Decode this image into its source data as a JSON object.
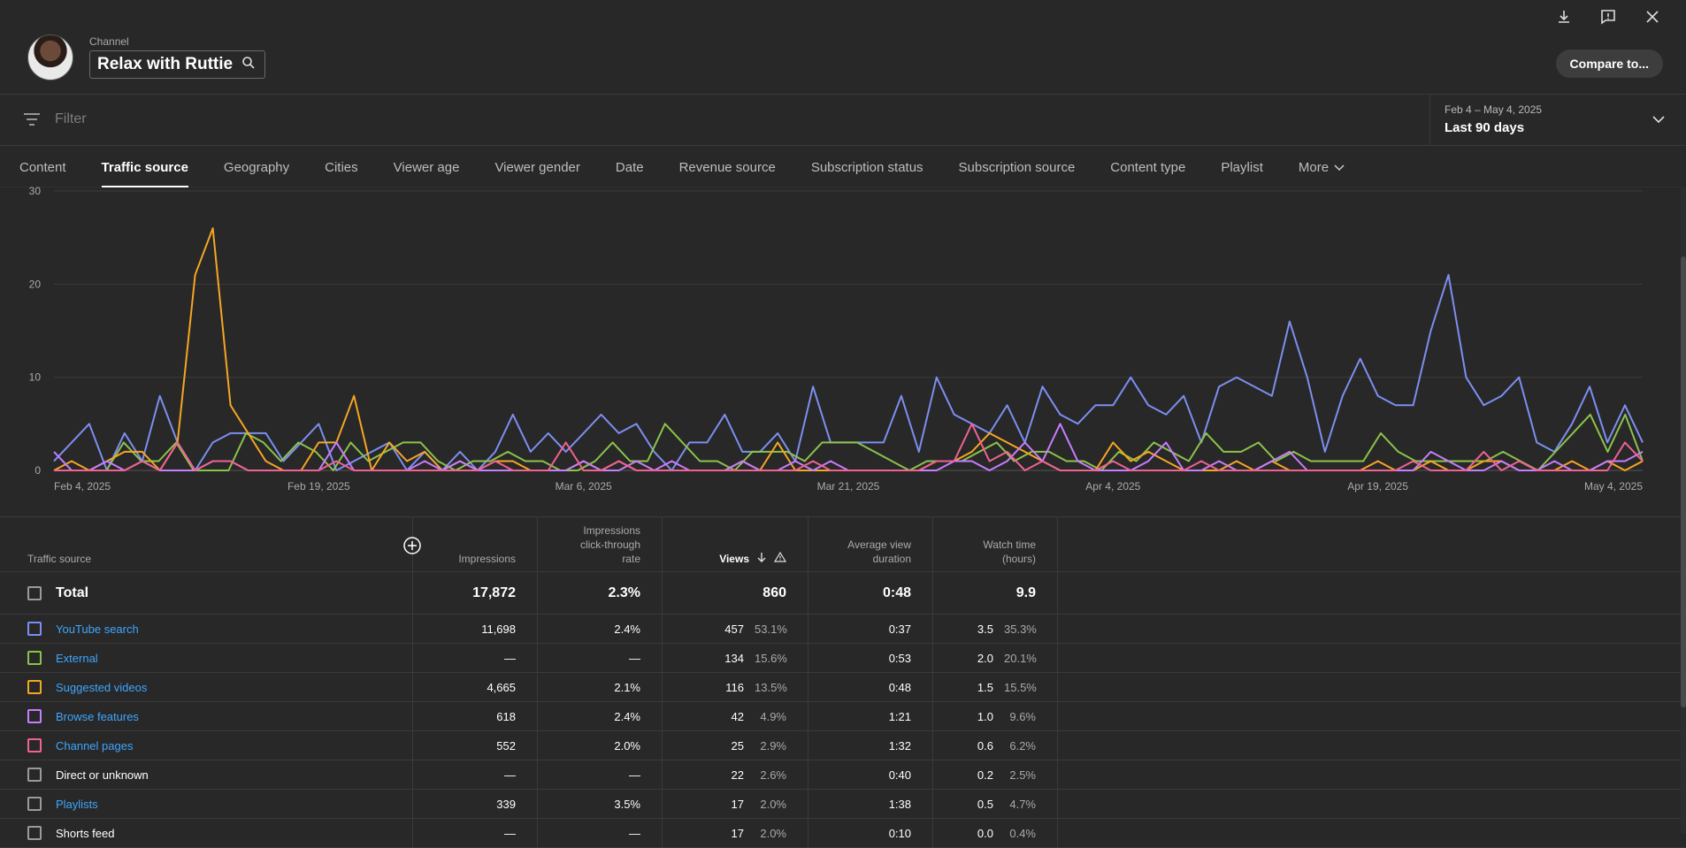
{
  "header": {
    "channel_label": "Channel",
    "channel_name": "Relax with Ruttie",
    "compare_label": "Compare to...",
    "icons": [
      "download-icon",
      "feedback-icon",
      "close-icon",
      "search-icon"
    ]
  },
  "filter": {
    "placeholder": "Filter",
    "date_range": "Feb 4 – May 4, 2025",
    "period": "Last 90 days"
  },
  "tabs": [
    {
      "label": "Content"
    },
    {
      "label": "Traffic source",
      "active": true
    },
    {
      "label": "Geography"
    },
    {
      "label": "Cities"
    },
    {
      "label": "Viewer age"
    },
    {
      "label": "Viewer gender"
    },
    {
      "label": "Date"
    },
    {
      "label": "Revenue source"
    },
    {
      "label": "Subscription status"
    },
    {
      "label": "Subscription source"
    },
    {
      "label": "Content type"
    },
    {
      "label": "Playlist"
    },
    {
      "label": "More"
    }
  ],
  "chart_data": {
    "type": "line",
    "ylim": [
      0,
      30
    ],
    "yticks": [
      0,
      10,
      20,
      30
    ],
    "xticks": [
      "Feb 4, 2025",
      "Feb 19, 2025",
      "Mar 6, 2025",
      "Mar 21, 2025",
      "Apr 4, 2025",
      "Apr 19, 2025",
      "May 4, 2025"
    ],
    "grid": true,
    "series": [
      {
        "name": "YouTube search",
        "color": "#7c8ff0",
        "values": [
          1,
          3,
          5,
          0,
          4,
          1,
          8,
          3,
          0,
          3,
          4,
          4,
          4,
          1,
          3,
          5,
          0,
          1,
          2,
          3,
          0,
          2,
          0,
          2,
          0,
          2,
          6,
          2,
          4,
          2,
          4,
          6,
          4,
          5,
          2,
          0,
          3,
          3,
          6,
          2,
          2,
          4,
          1,
          9,
          3,
          3,
          3,
          3,
          8,
          2,
          10,
          6,
          5,
          4,
          7,
          3,
          9,
          6,
          5,
          7,
          7,
          10,
          7,
          6,
          8,
          3,
          9,
          10,
          9,
          8,
          16,
          10,
          2,
          8,
          12,
          8,
          7,
          7,
          15,
          21,
          10,
          7,
          8,
          10,
          3,
          2,
          5,
          9,
          3,
          7,
          3
        ]
      },
      {
        "name": "External",
        "color": "#8bc34a",
        "values": [
          0,
          0,
          0,
          0,
          3,
          1,
          1,
          3,
          0,
          0,
          0,
          4,
          3,
          1,
          3,
          2,
          0,
          3,
          1,
          2,
          3,
          3,
          1,
          0,
          1,
          1,
          2,
          1,
          1,
          0,
          0,
          1,
          3,
          1,
          1,
          5,
          3,
          1,
          1,
          0,
          2,
          2,
          2,
          1,
          3,
          3,
          3,
          2,
          1,
          0,
          1,
          1,
          1,
          2,
          3,
          1,
          2,
          2,
          1,
          1,
          0,
          2,
          1,
          3,
          2,
          1,
          4,
          2,
          2,
          3,
          1,
          2,
          1,
          1,
          1,
          1,
          4,
          2,
          1,
          1,
          1,
          1,
          1,
          2,
          1,
          0,
          2,
          4,
          6,
          2,
          6,
          1
        ]
      },
      {
        "name": "Suggested videos",
        "color": "#f5a623",
        "values": [
          0,
          1,
          0,
          1,
          2,
          2,
          0,
          3,
          21,
          26,
          7,
          4,
          1,
          0,
          0,
          3,
          3,
          8,
          0,
          3,
          1,
          2,
          0,
          1,
          0,
          1,
          1,
          0,
          0,
          0,
          1,
          0,
          1,
          0,
          0,
          0,
          0,
          0,
          0,
          1,
          0,
          3,
          0,
          0,
          0,
          0,
          0,
          0,
          0,
          0,
          1,
          1,
          2,
          4,
          3,
          2,
          1,
          0,
          0,
          0,
          3,
          1,
          2,
          1,
          0,
          0,
          0,
          1,
          0,
          1,
          0,
          0,
          0,
          0,
          0,
          1,
          0,
          0,
          1,
          0,
          0,
          1,
          1,
          0,
          0,
          0,
          1,
          0,
          1,
          0,
          1
        ]
      },
      {
        "name": "Browse features",
        "color": "#c77dff",
        "values": [
          2,
          0,
          0,
          1,
          0,
          1,
          0,
          0,
          0,
          1,
          1,
          0,
          0,
          0,
          0,
          0,
          3,
          0,
          0,
          0,
          0,
          1,
          0,
          1,
          0,
          0,
          0,
          0,
          0,
          0,
          1,
          0,
          0,
          1,
          0,
          1,
          0,
          0,
          0,
          1,
          0,
          0,
          1,
          0,
          1,
          0,
          0,
          0,
          0,
          0,
          0,
          1,
          1,
          0,
          1,
          3,
          1,
          5,
          1,
          0,
          0,
          0,
          1,
          3,
          0,
          0,
          1,
          0,
          0,
          1,
          2,
          0,
          0,
          0,
          0,
          0,
          0,
          0,
          2,
          1,
          0,
          0,
          1,
          0,
          0,
          1,
          0,
          0,
          1,
          1,
          2
        ]
      },
      {
        "name": "Channel pages",
        "color": "#f06292",
        "values": [
          0,
          0,
          0,
          0,
          0,
          1,
          0,
          3,
          0,
          1,
          1,
          0,
          0,
          0,
          0,
          0,
          1,
          0,
          0,
          0,
          0,
          0,
          0,
          0,
          0,
          1,
          0,
          0,
          0,
          3,
          0,
          0,
          1,
          0,
          0,
          0,
          0,
          0,
          0,
          0,
          0,
          0,
          0,
          1,
          0,
          0,
          0,
          0,
          0,
          0,
          1,
          1,
          5,
          1,
          2,
          0,
          1,
          0,
          0,
          0,
          1,
          0,
          0,
          0,
          0,
          1,
          0,
          0,
          0,
          0,
          0,
          0,
          0,
          0,
          0,
          0,
          0,
          1,
          0,
          0,
          0,
          2,
          0,
          1,
          0,
          0,
          0,
          0,
          0,
          3,
          1
        ]
      }
    ]
  },
  "table": {
    "headers": {
      "source": "Traffic source",
      "impressions": "Impressions",
      "ctr": "Impressions click-through rate",
      "views": "Views",
      "avg_duration": "Average view duration",
      "watch_time": "Watch time (hours)"
    },
    "total": {
      "label": "Total",
      "impressions": "17,872",
      "ctr": "2.3%",
      "views": "860",
      "avg_duration": "0:48",
      "watch_time": "9.9"
    },
    "rows": [
      {
        "label": "YouTube search",
        "link": true,
        "color": "#7c8ff0",
        "impressions": "11,698",
        "ctr": "2.4%",
        "views": "457",
        "views_pct": "53.1%",
        "avg_duration": "0:37",
        "watch_time": "3.5",
        "watch_pct": "35.3%"
      },
      {
        "label": "External",
        "link": true,
        "color": "#8bc34a",
        "impressions": "—",
        "ctr": "—",
        "views": "134",
        "views_pct": "15.6%",
        "avg_duration": "0:53",
        "watch_time": "2.0",
        "watch_pct": "20.1%"
      },
      {
        "label": "Suggested videos",
        "link": true,
        "color": "#f5a623",
        "impressions": "4,665",
        "ctr": "2.1%",
        "views": "116",
        "views_pct": "13.5%",
        "avg_duration": "0:48",
        "watch_time": "1.5",
        "watch_pct": "15.5%"
      },
      {
        "label": "Browse features",
        "link": true,
        "color": "#c77dff",
        "impressions": "618",
        "ctr": "2.4%",
        "views": "42",
        "views_pct": "4.9%",
        "avg_duration": "1:21",
        "watch_time": "1.0",
        "watch_pct": "9.6%"
      },
      {
        "label": "Channel pages",
        "link": true,
        "color": "#f06292",
        "impressions": "552",
        "ctr": "2.0%",
        "views": "25",
        "views_pct": "2.9%",
        "avg_duration": "1:32",
        "watch_time": "0.6",
        "watch_pct": "6.2%"
      },
      {
        "label": "Direct or unknown",
        "link": false,
        "color": "#9a9a9a",
        "impressions": "—",
        "ctr": "—",
        "views": "22",
        "views_pct": "2.6%",
        "avg_duration": "0:40",
        "watch_time": "0.2",
        "watch_pct": "2.5%"
      },
      {
        "label": "Playlists",
        "link": true,
        "color": "#9a9a9a",
        "impressions": "339",
        "ctr": "3.5%",
        "views": "17",
        "views_pct": "2.0%",
        "avg_duration": "1:38",
        "watch_time": "0.5",
        "watch_pct": "4.7%"
      },
      {
        "label": "Shorts feed",
        "link": false,
        "color": "#9a9a9a",
        "impressions": "—",
        "ctr": "—",
        "views": "17",
        "views_pct": "2.0%",
        "avg_duration": "0:10",
        "watch_time": "0.0",
        "watch_pct": "0.4%"
      }
    ]
  }
}
